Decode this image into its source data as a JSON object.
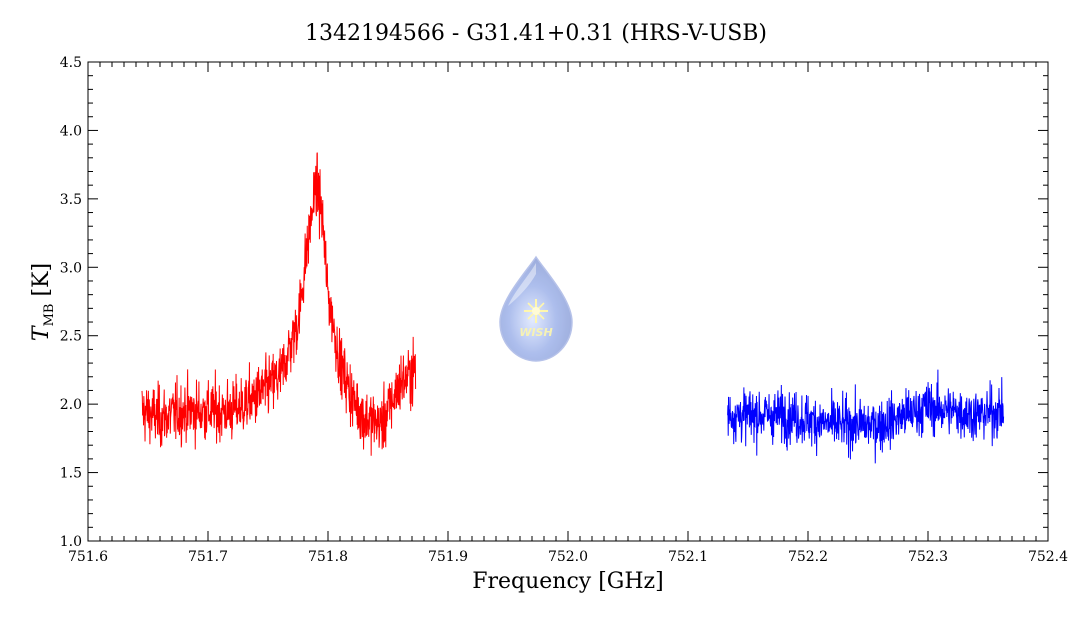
{
  "chart_data": {
    "type": "line",
    "title": "1342194566 - G31.41+0.31 (HRS-V-USB)",
    "xlabel": "Frequency [GHz]",
    "ylabel_main": "T",
    "ylabel_sub": "MB",
    "ylabel_unit": " [K]",
    "xlim": [
      751.6,
      752.4
    ],
    "ylim": [
      1.0,
      4.5
    ],
    "x_ticks": [
      "751.6",
      "751.7",
      "751.8",
      "751.9",
      "752.0",
      "752.1",
      "752.2",
      "752.3",
      "752.4"
    ],
    "y_ticks": [
      "1.0",
      "1.5",
      "2.0",
      "2.5",
      "3.0",
      "3.5",
      "4.0",
      "4.5"
    ],
    "grid": false,
    "logo_text": "WISH",
    "series": [
      {
        "color": "#ff0000",
        "x_range": [
          751.645,
          751.873
        ],
        "baseline": 1.95,
        "noise_rms": 0.2,
        "peak": {
          "center": 751.79,
          "height": 1.7,
          "width": 0.012
        },
        "samples": [
          [
            751.645,
            1.95
          ],
          [
            751.66,
            1.9
          ],
          [
            751.68,
            1.95
          ],
          [
            751.7,
            1.95
          ],
          [
            751.72,
            1.95
          ],
          [
            751.74,
            2.05
          ],
          [
            751.76,
            2.2
          ],
          [
            751.775,
            2.6
          ],
          [
            751.785,
            3.3
          ],
          [
            751.79,
            3.6
          ],
          [
            751.795,
            3.4
          ],
          [
            751.8,
            2.8
          ],
          [
            751.81,
            2.3
          ],
          [
            751.82,
            2.05
          ],
          [
            751.83,
            1.9
          ],
          [
            751.845,
            1.85
          ],
          [
            751.86,
            2.15
          ],
          [
            751.873,
            2.25
          ]
        ]
      },
      {
        "color": "#0000ff",
        "x_range": [
          752.133,
          752.363
        ],
        "baseline": 1.92,
        "noise_rms": 0.17,
        "samples": [
          [
            752.133,
            1.92
          ],
          [
            752.18,
            1.92
          ],
          [
            752.22,
            1.85
          ],
          [
            752.26,
            1.85
          ],
          [
            752.3,
            1.98
          ],
          [
            752.34,
            1.92
          ],
          [
            752.363,
            1.95
          ]
        ]
      }
    ]
  }
}
